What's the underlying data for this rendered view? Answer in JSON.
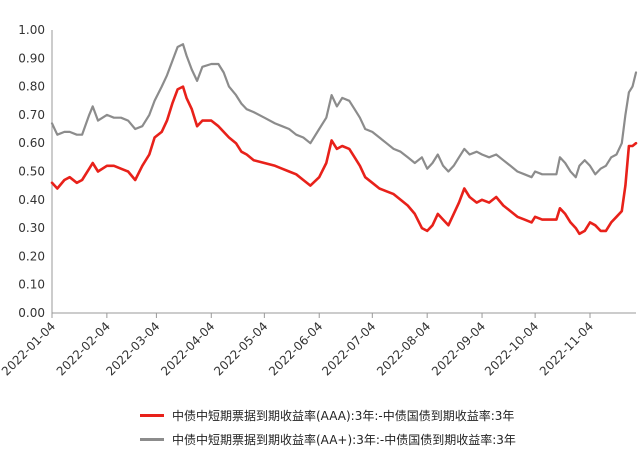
{
  "chart_data": {
    "type": "line",
    "title": "",
    "xlabel": "",
    "ylabel": "",
    "ylim": [
      0,
      1
    ],
    "grid": false,
    "legend_position": "bottom",
    "y_ticks": [
      "0.00",
      "0.10",
      "0.20",
      "0.30",
      "0.40",
      "0.50",
      "0.60",
      "0.70",
      "0.80",
      "0.90",
      "1.00"
    ],
    "x_ticks": [
      "2022-01-04",
      "2022-02-04",
      "2022-03-04",
      "2022-04-04",
      "2022-05-04",
      "2022-06-04",
      "2022-07-04",
      "2022-08-04",
      "2022-09-04",
      "2022-10-04",
      "2022-11-04"
    ],
    "series": [
      {
        "name": "中债中短期票据到期收益率(AAA):3年:-中债国债到期收益率:3年",
        "color": "#e8211a",
        "points": [
          [
            "2022-01-04",
            0.46
          ],
          [
            "2022-01-07",
            0.44
          ],
          [
            "2022-01-11",
            0.47
          ],
          [
            "2022-01-14",
            0.48
          ],
          [
            "2022-01-18",
            0.46
          ],
          [
            "2022-01-21",
            0.47
          ],
          [
            "2022-01-25",
            0.51
          ],
          [
            "2022-01-27",
            0.53
          ],
          [
            "2022-01-30",
            0.5
          ],
          [
            "2022-02-04",
            0.52
          ],
          [
            "2022-02-08",
            0.52
          ],
          [
            "2022-02-12",
            0.51
          ],
          [
            "2022-02-16",
            0.5
          ],
          [
            "2022-02-20",
            0.47
          ],
          [
            "2022-02-24",
            0.52
          ],
          [
            "2022-02-28",
            0.56
          ],
          [
            "2022-03-03",
            0.62
          ],
          [
            "2022-03-07",
            0.64
          ],
          [
            "2022-03-10",
            0.68
          ],
          [
            "2022-03-13",
            0.74
          ],
          [
            "2022-03-16",
            0.79
          ],
          [
            "2022-03-19",
            0.8
          ],
          [
            "2022-03-21",
            0.76
          ],
          [
            "2022-03-24",
            0.72
          ],
          [
            "2022-03-27",
            0.66
          ],
          [
            "2022-03-30",
            0.68
          ],
          [
            "2022-04-04",
            0.68
          ],
          [
            "2022-04-08",
            0.66
          ],
          [
            "2022-04-11",
            0.64
          ],
          [
            "2022-04-14",
            0.62
          ],
          [
            "2022-04-18",
            0.6
          ],
          [
            "2022-04-21",
            0.57
          ],
          [
            "2022-04-24",
            0.56
          ],
          [
            "2022-04-28",
            0.54
          ],
          [
            "2022-05-04",
            0.53
          ],
          [
            "2022-05-10",
            0.52
          ],
          [
            "2022-05-14",
            0.51
          ],
          [
            "2022-05-18",
            0.5
          ],
          [
            "2022-05-22",
            0.49
          ],
          [
            "2022-05-26",
            0.47
          ],
          [
            "2022-05-30",
            0.45
          ],
          [
            "2022-06-04",
            0.48
          ],
          [
            "2022-06-08",
            0.53
          ],
          [
            "2022-06-11",
            0.61
          ],
          [
            "2022-06-14",
            0.58
          ],
          [
            "2022-06-17",
            0.59
          ],
          [
            "2022-06-21",
            0.58
          ],
          [
            "2022-06-24",
            0.55
          ],
          [
            "2022-06-27",
            0.52
          ],
          [
            "2022-06-30",
            0.48
          ],
          [
            "2022-07-04",
            0.46
          ],
          [
            "2022-07-08",
            0.44
          ],
          [
            "2022-07-12",
            0.43
          ],
          [
            "2022-07-16",
            0.42
          ],
          [
            "2022-07-20",
            0.4
          ],
          [
            "2022-07-24",
            0.38
          ],
          [
            "2022-07-28",
            0.35
          ],
          [
            "2022-08-01",
            0.3
          ],
          [
            "2022-08-04",
            0.29
          ],
          [
            "2022-08-07",
            0.31
          ],
          [
            "2022-08-10",
            0.35
          ],
          [
            "2022-08-13",
            0.33
          ],
          [
            "2022-08-16",
            0.31
          ],
          [
            "2022-08-19",
            0.35
          ],
          [
            "2022-08-22",
            0.39
          ],
          [
            "2022-08-25",
            0.44
          ],
          [
            "2022-08-28",
            0.41
          ],
          [
            "2022-09-01",
            0.39
          ],
          [
            "2022-09-04",
            0.4
          ],
          [
            "2022-09-08",
            0.39
          ],
          [
            "2022-09-12",
            0.41
          ],
          [
            "2022-09-16",
            0.38
          ],
          [
            "2022-09-20",
            0.36
          ],
          [
            "2022-09-24",
            0.34
          ],
          [
            "2022-09-28",
            0.33
          ],
          [
            "2022-10-02",
            0.32
          ],
          [
            "2022-10-04",
            0.34
          ],
          [
            "2022-10-08",
            0.33
          ],
          [
            "2022-10-12",
            0.33
          ],
          [
            "2022-10-16",
            0.33
          ],
          [
            "2022-10-18",
            0.37
          ],
          [
            "2022-10-21",
            0.35
          ],
          [
            "2022-10-24",
            0.32
          ],
          [
            "2022-10-27",
            0.3
          ],
          [
            "2022-10-29",
            0.28
          ],
          [
            "2022-11-01",
            0.29
          ],
          [
            "2022-11-04",
            0.32
          ],
          [
            "2022-11-07",
            0.31
          ],
          [
            "2022-11-10",
            0.29
          ],
          [
            "2022-11-13",
            0.29
          ],
          [
            "2022-11-16",
            0.32
          ],
          [
            "2022-11-19",
            0.34
          ],
          [
            "2022-11-22",
            0.36
          ],
          [
            "2022-11-24",
            0.45
          ],
          [
            "2022-11-26",
            0.59
          ],
          [
            "2022-11-28",
            0.59
          ],
          [
            "2022-11-30",
            0.6
          ]
        ]
      },
      {
        "name": "中债中短期票据到期收益率(AA+):3年:-中债国债到期收益率:3年",
        "color": "#8c8c8c",
        "points": [
          [
            "2022-01-04",
            0.67
          ],
          [
            "2022-01-07",
            0.63
          ],
          [
            "2022-01-11",
            0.64
          ],
          [
            "2022-01-14",
            0.64
          ],
          [
            "2022-01-18",
            0.63
          ],
          [
            "2022-01-21",
            0.63
          ],
          [
            "2022-01-25",
            0.7
          ],
          [
            "2022-01-27",
            0.73
          ],
          [
            "2022-01-30",
            0.68
          ],
          [
            "2022-02-04",
            0.7
          ],
          [
            "2022-02-08",
            0.69
          ],
          [
            "2022-02-12",
            0.69
          ],
          [
            "2022-02-16",
            0.68
          ],
          [
            "2022-02-20",
            0.65
          ],
          [
            "2022-02-24",
            0.66
          ],
          [
            "2022-02-28",
            0.7
          ],
          [
            "2022-03-03",
            0.75
          ],
          [
            "2022-03-07",
            0.8
          ],
          [
            "2022-03-10",
            0.84
          ],
          [
            "2022-03-13",
            0.89
          ],
          [
            "2022-03-16",
            0.94
          ],
          [
            "2022-03-19",
            0.95
          ],
          [
            "2022-03-21",
            0.91
          ],
          [
            "2022-03-24",
            0.86
          ],
          [
            "2022-03-27",
            0.82
          ],
          [
            "2022-03-30",
            0.87
          ],
          [
            "2022-04-04",
            0.88
          ],
          [
            "2022-04-08",
            0.88
          ],
          [
            "2022-04-11",
            0.85
          ],
          [
            "2022-04-14",
            0.8
          ],
          [
            "2022-04-18",
            0.77
          ],
          [
            "2022-04-21",
            0.74
          ],
          [
            "2022-04-24",
            0.72
          ],
          [
            "2022-04-28",
            0.71
          ],
          [
            "2022-05-04",
            0.69
          ],
          [
            "2022-05-10",
            0.67
          ],
          [
            "2022-05-14",
            0.66
          ],
          [
            "2022-05-18",
            0.65
          ],
          [
            "2022-05-22",
            0.63
          ],
          [
            "2022-05-26",
            0.62
          ],
          [
            "2022-05-30",
            0.6
          ],
          [
            "2022-06-04",
            0.65
          ],
          [
            "2022-06-08",
            0.69
          ],
          [
            "2022-06-11",
            0.77
          ],
          [
            "2022-06-14",
            0.73
          ],
          [
            "2022-06-17",
            0.76
          ],
          [
            "2022-06-21",
            0.75
          ],
          [
            "2022-06-24",
            0.72
          ],
          [
            "2022-06-27",
            0.69
          ],
          [
            "2022-06-30",
            0.65
          ],
          [
            "2022-07-04",
            0.64
          ],
          [
            "2022-07-08",
            0.62
          ],
          [
            "2022-07-12",
            0.6
          ],
          [
            "2022-07-16",
            0.58
          ],
          [
            "2022-07-20",
            0.57
          ],
          [
            "2022-07-24",
            0.55
          ],
          [
            "2022-07-28",
            0.53
          ],
          [
            "2022-08-01",
            0.55
          ],
          [
            "2022-08-04",
            0.51
          ],
          [
            "2022-08-07",
            0.53
          ],
          [
            "2022-08-10",
            0.56
          ],
          [
            "2022-08-13",
            0.52
          ],
          [
            "2022-08-16",
            0.5
          ],
          [
            "2022-08-19",
            0.52
          ],
          [
            "2022-08-22",
            0.55
          ],
          [
            "2022-08-25",
            0.58
          ],
          [
            "2022-08-28",
            0.56
          ],
          [
            "2022-09-01",
            0.57
          ],
          [
            "2022-09-04",
            0.56
          ],
          [
            "2022-09-08",
            0.55
          ],
          [
            "2022-09-12",
            0.56
          ],
          [
            "2022-09-16",
            0.54
          ],
          [
            "2022-09-20",
            0.52
          ],
          [
            "2022-09-24",
            0.5
          ],
          [
            "2022-09-28",
            0.49
          ],
          [
            "2022-10-02",
            0.48
          ],
          [
            "2022-10-04",
            0.5
          ],
          [
            "2022-10-08",
            0.49
          ],
          [
            "2022-10-12",
            0.49
          ],
          [
            "2022-10-16",
            0.49
          ],
          [
            "2022-10-18",
            0.55
          ],
          [
            "2022-10-21",
            0.53
          ],
          [
            "2022-10-24",
            0.5
          ],
          [
            "2022-10-27",
            0.48
          ],
          [
            "2022-10-29",
            0.52
          ],
          [
            "2022-11-01",
            0.54
          ],
          [
            "2022-11-04",
            0.52
          ],
          [
            "2022-11-07",
            0.49
          ],
          [
            "2022-11-10",
            0.51
          ],
          [
            "2022-11-13",
            0.52
          ],
          [
            "2022-11-16",
            0.55
          ],
          [
            "2022-11-19",
            0.56
          ],
          [
            "2022-11-22",
            0.6
          ],
          [
            "2022-11-24",
            0.7
          ],
          [
            "2022-11-26",
            0.78
          ],
          [
            "2022-11-28",
            0.8
          ],
          [
            "2022-11-30",
            0.85
          ]
        ]
      }
    ]
  }
}
